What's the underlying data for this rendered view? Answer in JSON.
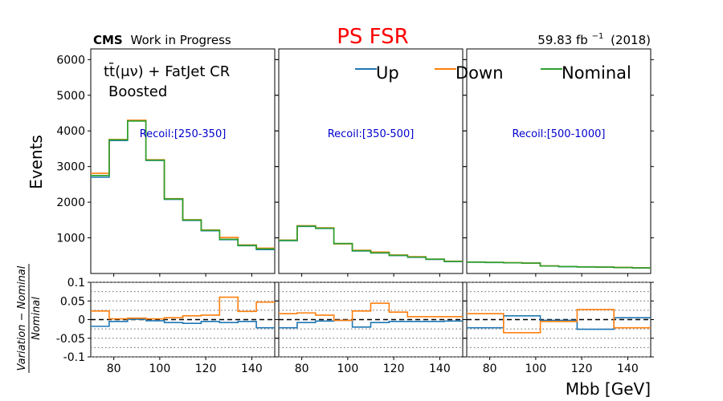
{
  "header": {
    "title": "PS FSR",
    "title_color": "#ff0000",
    "cms_bold": "CMS",
    "cms_rest": "Work in Progress",
    "lumi_value": "59.83 fb",
    "lumi_exp": "−1",
    "lumi_year": "(2018)"
  },
  "region": {
    "line1": "tt̄(μν) + FatJet CR",
    "line2": "Boosted"
  },
  "legend": [
    {
      "label": "Up",
      "color": "#1f77b4"
    },
    {
      "label": "Down",
      "color": "#ff7f0e"
    },
    {
      "label": "Nominal",
      "color": "#2ca02c"
    }
  ],
  "axes": {
    "ylabel_top": "Events",
    "ylabel_bottom_num": "Variation − Nominal",
    "ylabel_bottom_den": "Nominal",
    "xlabel": "Mbb [GeV]"
  },
  "chart_data": {
    "type": "line",
    "style": "step-histogram",
    "x_edges": [
      70,
      78,
      86,
      94,
      102,
      110,
      118,
      126,
      134,
      142,
      150
    ],
    "xlim": [
      70,
      150
    ],
    "x_ticks": [
      "80",
      "100",
      "120",
      "140"
    ],
    "ylim_top": [
      0,
      6300
    ],
    "y_ticks_top": [
      "1000",
      "2000",
      "3000",
      "4000",
      "5000",
      "6000"
    ],
    "ylim_bottom": [
      -0.1,
      0.1
    ],
    "y_ticks_bottom": [
      "0.1",
      "0.05",
      "0",
      "-0.05",
      "-0.1"
    ],
    "grid_bottom": true,
    "panels": [
      {
        "label": "Recoil:[250-350]",
        "nominal": [
          2750,
          3750,
          4280,
          3180,
          2090,
          1500,
          1210,
          960,
          790,
          690
        ],
        "up": [
          2700,
          3730,
          4290,
          3170,
          2080,
          1490,
          1200,
          950,
          780,
          670
        ],
        "down": [
          2810,
          3760,
          4300,
          3190,
          2100,
          1510,
          1220,
          1010,
          800,
          710
        ],
        "ratio_up": [
          -0.018,
          -0.005,
          0.001,
          -0.003,
          -0.008,
          -0.01,
          -0.005,
          -0.008,
          -0.005,
          -0.022
        ],
        "ratio_down": [
          0.023,
          0.002,
          0.004,
          0.002,
          0.005,
          0.01,
          0.012,
          0.06,
          0.022,
          0.047
        ]
      },
      {
        "label": "Recoil:[350-500]",
        "nominal": [
          930,
          1330,
          1270,
          840,
          640,
          580,
          510,
          460,
          400,
          340
        ],
        "up": [
          920,
          1320,
          1265,
          835,
          630,
          575,
          505,
          455,
          395,
          335
        ],
        "down": [
          935,
          1340,
          1280,
          830,
          650,
          600,
          520,
          470,
          400,
          345
        ],
        "ratio_up": [
          -0.022,
          -0.008,
          -0.004,
          -0.002,
          -0.02,
          -0.008,
          -0.005,
          -0.005,
          -0.005,
          -0.004
        ],
        "ratio_down": [
          0.016,
          0.018,
          0.012,
          -0.002,
          0.023,
          0.044,
          0.02,
          0.008,
          0.008,
          0.008
        ]
      },
      {
        "label": "Recoil:[500-1000]",
        "nominal": [
          320,
          310,
          300,
          290,
          210,
          195,
          185,
          178,
          168,
          160
        ],
        "up": [
          318,
          308,
          298,
          288,
          208,
          193,
          183,
          176,
          166,
          158
        ],
        "down": [
          322,
          312,
          302,
          292,
          212,
          197,
          187,
          180,
          170,
          162
        ],
        "ratio_up": [
          -0.022,
          -0.022,
          0.01,
          0.01,
          -0.002,
          -0.002,
          -0.026,
          -0.026,
          0.005,
          0.005
        ],
        "ratio_down": [
          0.016,
          0.016,
          -0.035,
          -0.035,
          -0.005,
          -0.005,
          0.027,
          0.027,
          -0.022,
          -0.022
        ]
      }
    ]
  }
}
